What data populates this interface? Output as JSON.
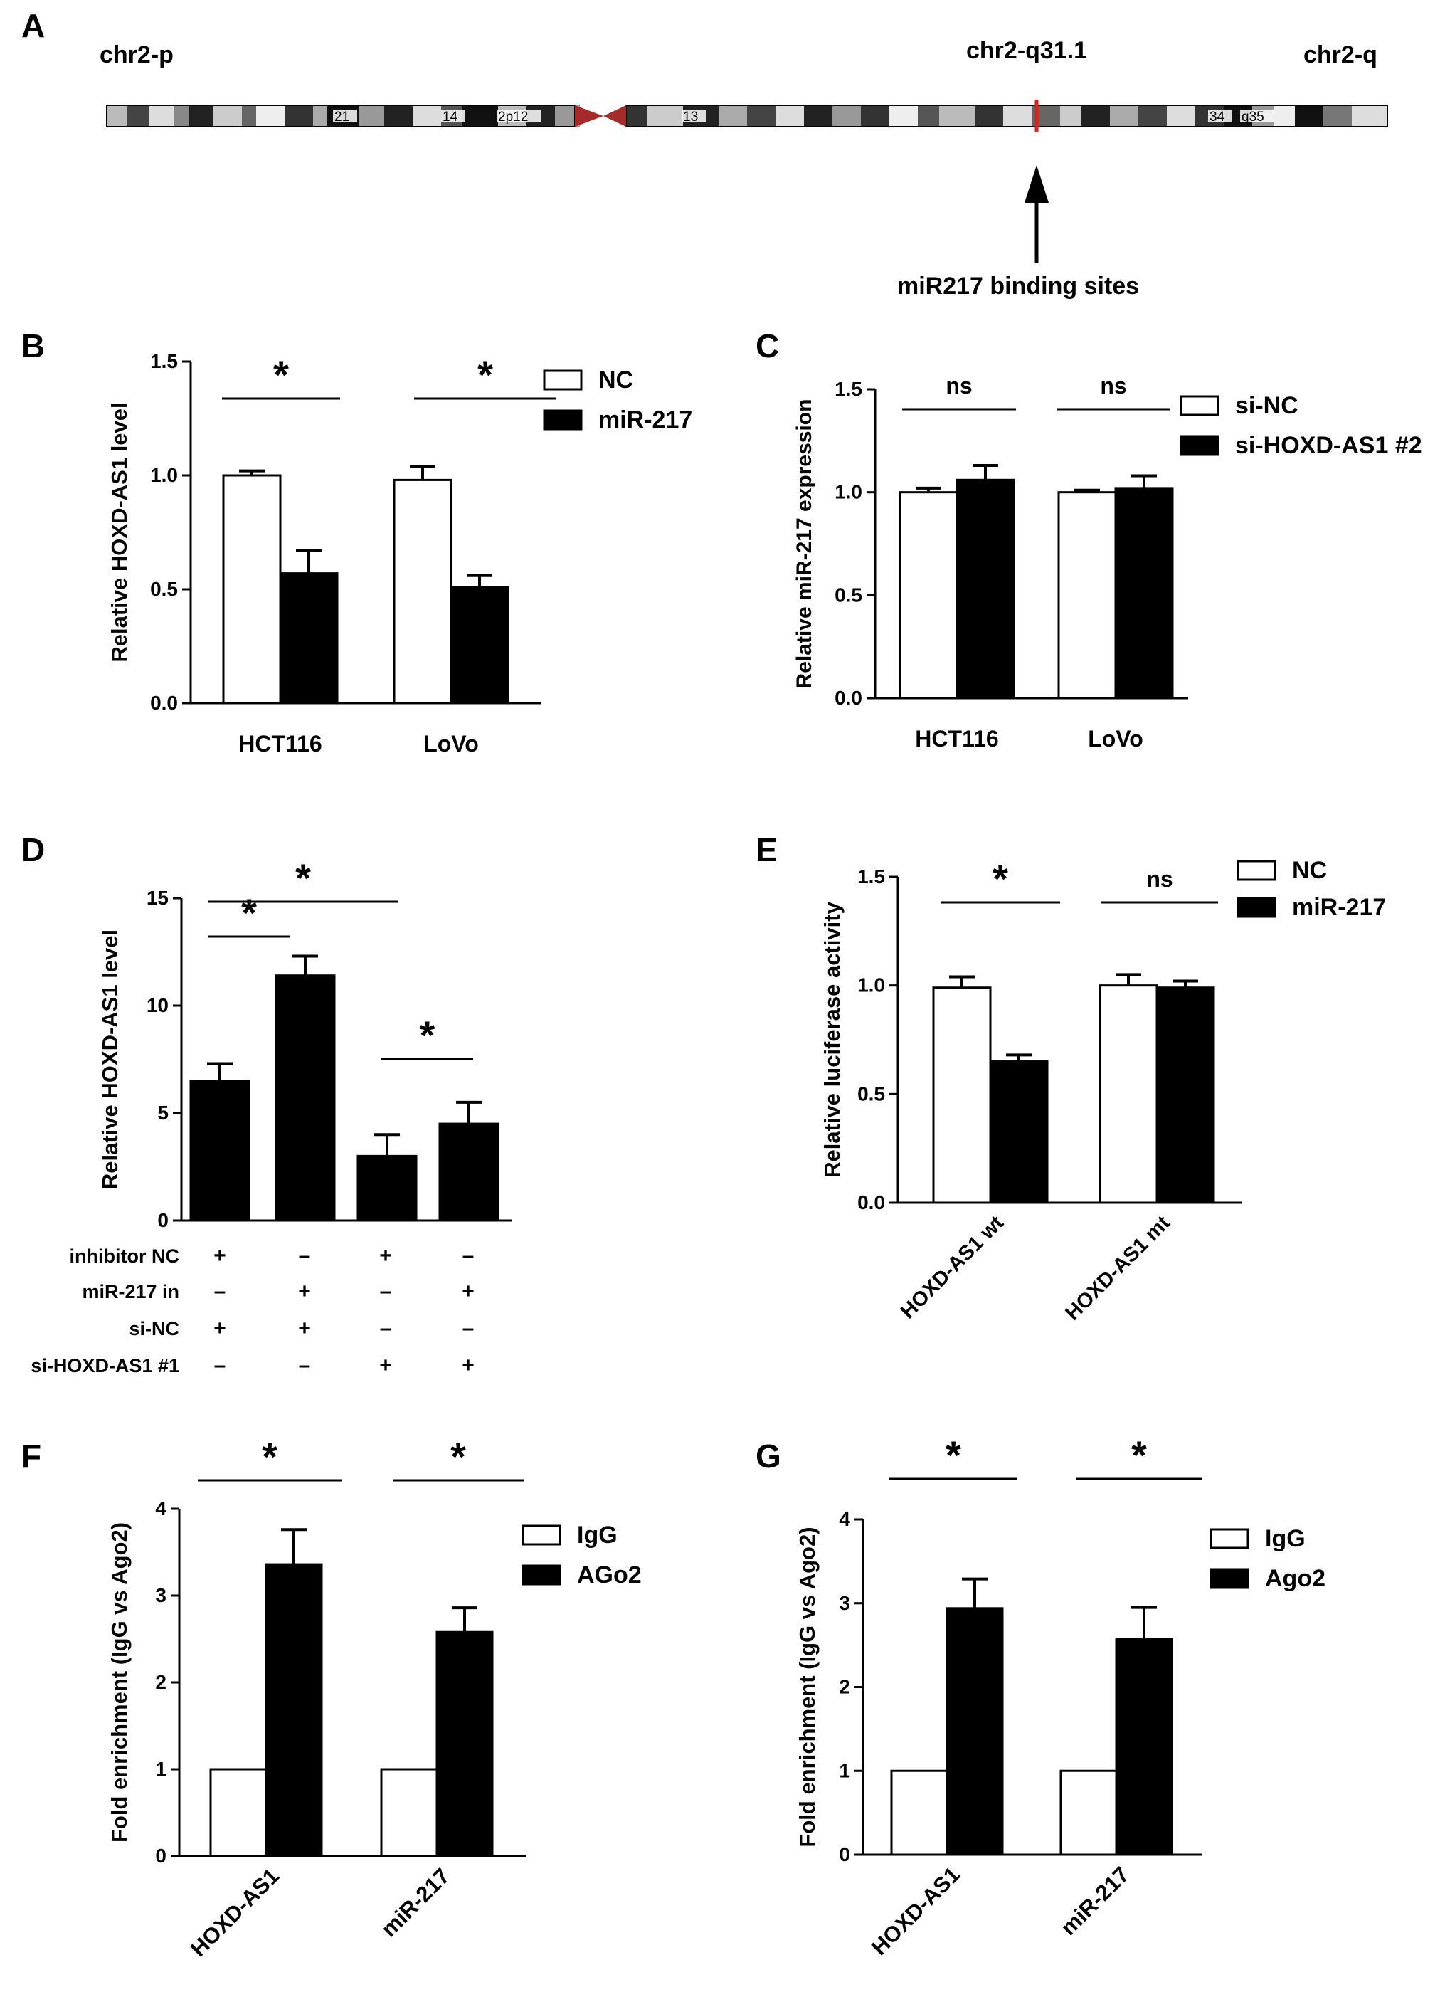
{
  "panel_letters": [
    "A",
    "B",
    "C",
    "D",
    "E",
    "F",
    "G"
  ],
  "ideogram": {
    "left_label": "chr2-p",
    "mid_label": "chr2-q31.1",
    "right_label": "chr2-q",
    "band_labels": [
      "21",
      "14",
      "2p12",
      "13",
      "34",
      "q35"
    ],
    "marker_color": "#e0201c",
    "centromere_color": "#a52a2a",
    "arrow_label": "miR217 binding sites"
  },
  "chart_data": [
    {
      "panel": "B",
      "type": "bar",
      "ylabel": "Relative HOXD-AS1 level",
      "ylim": [
        0,
        1.5
      ],
      "yticks": [
        0.0,
        0.5,
        1.0,
        1.5
      ],
      "ytick_labels": [
        "0.0",
        "0.5",
        "1.0",
        "1.5"
      ],
      "categories": [
        "HCT116",
        "LoVo"
      ],
      "series": [
        {
          "name": "NC",
          "fill": "#ffffff",
          "values": [
            1.0,
            0.98
          ],
          "errors": [
            0.02,
            0.06
          ]
        },
        {
          "name": "miR-217",
          "fill": "#000000",
          "values": [
            0.57,
            0.51
          ],
          "errors": [
            0.1,
            0.05
          ]
        }
      ],
      "significance": [
        "*",
        "*"
      ],
      "legend": "top-right"
    },
    {
      "panel": "C",
      "type": "bar",
      "ylabel": "Relative miR-217 expression",
      "ylim": [
        0,
        1.5
      ],
      "yticks": [
        0.0,
        0.5,
        1.0,
        1.5
      ],
      "ytick_labels": [
        "0.0",
        "0.5",
        "1.0",
        "1.5"
      ],
      "categories": [
        "HCT116",
        "LoVo"
      ],
      "series": [
        {
          "name": "si-NC",
          "fill": "#ffffff",
          "values": [
            1.0,
            1.0
          ],
          "errors": [
            0.02,
            0.01
          ]
        },
        {
          "name": "si-HOXD-AS1 #2",
          "fill": "#000000",
          "values": [
            1.06,
            1.02
          ],
          "errors": [
            0.07,
            0.06
          ]
        }
      ],
      "significance": [
        "ns",
        "ns"
      ],
      "legend": "top-right"
    },
    {
      "panel": "D",
      "type": "bar",
      "ylabel": "Relative HOXD-AS1 level",
      "ylim": [
        0,
        15
      ],
      "yticks": [
        0,
        5,
        10,
        15
      ],
      "ytick_labels": [
        "0",
        "5",
        "10",
        "15"
      ],
      "values": [
        6.5,
        11.4,
        3.0,
        4.5
      ],
      "errors": [
        0.8,
        0.9,
        1.0,
        1.0
      ],
      "significance": [
        "*",
        "*",
        "*"
      ],
      "condition_rows": [
        {
          "label": "inhibitor NC",
          "marks": [
            "+",
            "–",
            "+",
            "–"
          ]
        },
        {
          "label": "miR-217 in",
          "marks": [
            "–",
            "+",
            "–",
            "+"
          ]
        },
        {
          "label": "si-NC",
          "marks": [
            "+",
            "+",
            "–",
            "–"
          ]
        },
        {
          "label": "si-HOXD-AS1 #1",
          "marks": [
            "–",
            "–",
            "+",
            "+"
          ]
        }
      ]
    },
    {
      "panel": "E",
      "type": "bar",
      "ylabel": "Relative luciferase activity",
      "ylim": [
        0,
        1.5
      ],
      "yticks": [
        0.0,
        0.5,
        1.0,
        1.5
      ],
      "ytick_labels": [
        "0.0",
        "0.5",
        "1.0",
        "1.5"
      ],
      "categories": [
        "HOXD-AS1 wt",
        "HOXD-AS1 mt"
      ],
      "series": [
        {
          "name": "NC",
          "fill": "#ffffff",
          "values": [
            0.99,
            1.0
          ],
          "errors": [
            0.05,
            0.05
          ]
        },
        {
          "name": "miR-217",
          "fill": "#000000",
          "values": [
            0.65,
            0.99
          ],
          "errors": [
            0.03,
            0.03
          ]
        }
      ],
      "significance": [
        "*",
        "ns"
      ],
      "legend": "top-right"
    },
    {
      "panel": "F",
      "type": "bar",
      "ylabel": "Fold enrichment (IgG vs Ago2)",
      "ylim": [
        0,
        4
      ],
      "yticks": [
        0,
        1,
        2,
        3,
        4
      ],
      "ytick_labels": [
        "0",
        "1",
        "2",
        "3",
        "4"
      ],
      "categories": [
        "HOXD-AS1",
        "miR-217"
      ],
      "series": [
        {
          "name": "IgG",
          "fill": "#ffffff",
          "values": [
            1.0,
            1.0
          ],
          "errors": [
            0,
            0
          ]
        },
        {
          "name": "AGo2",
          "fill": "#000000",
          "values": [
            3.36,
            2.58
          ],
          "errors": [
            0.4,
            0.28
          ]
        }
      ],
      "significance": [
        "*",
        "*"
      ],
      "legend": "top-right"
    },
    {
      "panel": "G",
      "type": "bar",
      "ylabel": "Fold enrichment (IgG vs Ago2)",
      "ylim": [
        0,
        4
      ],
      "yticks": [
        0,
        1,
        2,
        3,
        4
      ],
      "ytick_labels": [
        "0",
        "1",
        "2",
        "3",
        "4"
      ],
      "categories": [
        "HOXD-AS1",
        "miR-217"
      ],
      "series": [
        {
          "name": "IgG",
          "fill": "#ffffff",
          "values": [
            1.0,
            1.0
          ],
          "errors": [
            0,
            0
          ]
        },
        {
          "name": "Ago2",
          "fill": "#000000",
          "values": [
            2.94,
            2.57
          ],
          "errors": [
            0.35,
            0.38
          ]
        }
      ],
      "significance": [
        "*",
        "*"
      ],
      "legend": "top-right"
    }
  ]
}
